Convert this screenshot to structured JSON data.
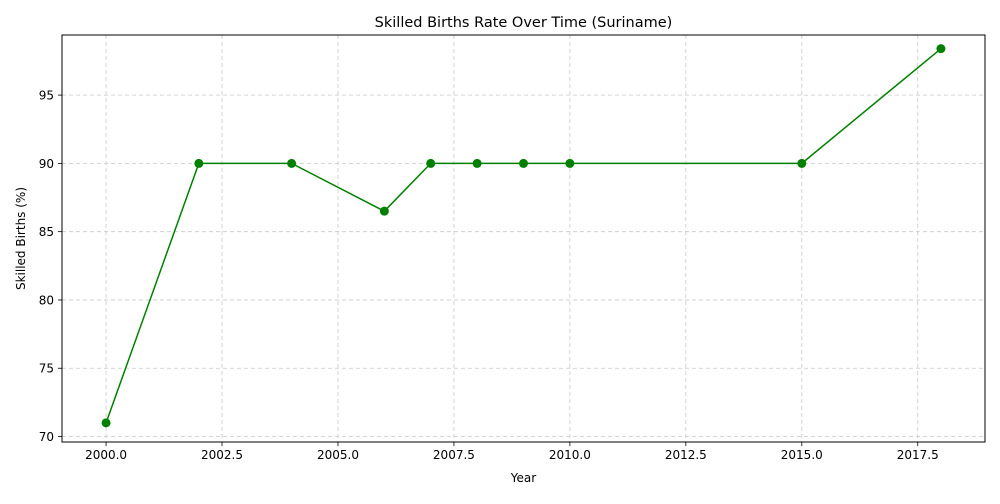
{
  "chart_data": {
    "type": "line",
    "title": "Skilled Births Rate Over Time (Suriname)",
    "xlabel": "Year",
    "ylabel": "Skilled Births (%)",
    "x": [
      2000,
      2002,
      2004,
      2006,
      2007,
      2008,
      2009,
      2010,
      2015,
      2018
    ],
    "series": [
      {
        "values": [
          71.0,
          90.0,
          90.0,
          86.5,
          90.0,
          90.0,
          90.0,
          90.0,
          90.0,
          98.4
        ]
      }
    ],
    "xlim": [
      1999.05,
      2018.95
    ],
    "ylim": [
      69.6,
      99.4
    ],
    "x_ticks": [
      2000.0,
      2002.5,
      2005.0,
      2007.5,
      2010.0,
      2012.5,
      2015.0,
      2017.5
    ],
    "x_tick_labels": [
      "2000.0",
      "2002.5",
      "2005.0",
      "2007.5",
      "2010.0",
      "2012.5",
      "2015.0",
      "2017.5"
    ],
    "y_ticks": [
      70,
      75,
      80,
      85,
      90,
      95
    ],
    "y_tick_labels": [
      "70",
      "75",
      "80",
      "85",
      "90",
      "95"
    ],
    "grid": true,
    "line_color": "#008000",
    "marker": "circle",
    "grid_color": "#c8c8c8"
  }
}
